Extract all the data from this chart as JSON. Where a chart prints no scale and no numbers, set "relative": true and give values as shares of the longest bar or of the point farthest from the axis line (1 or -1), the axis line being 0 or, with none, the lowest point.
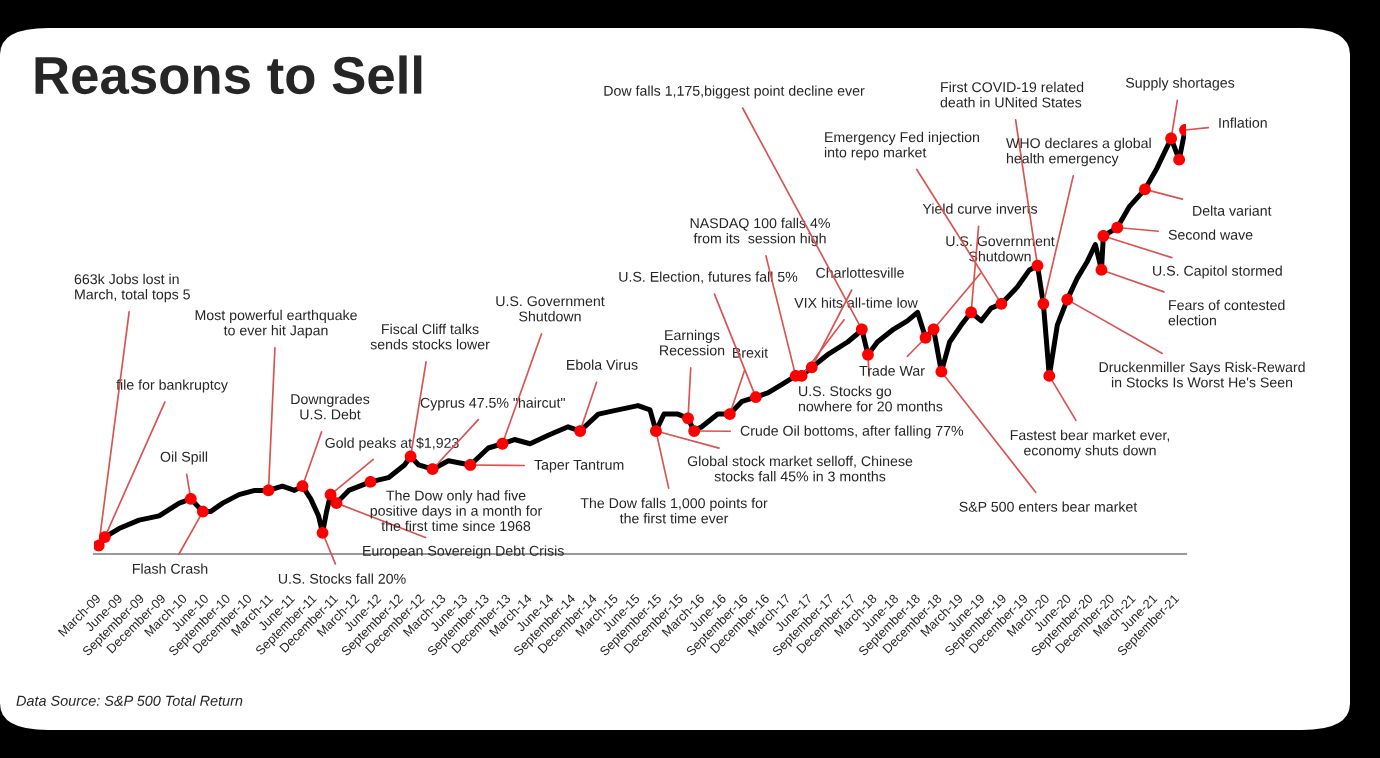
{
  "chart_data": {
    "type": "line",
    "title": "Reasons to Sell",
    "relative": true,
    "xlim": [
      "2009-02-25",
      "2021-10-25"
    ],
    "xticks": [
      {
        "value": "2009-03",
        "label": "March-09"
      },
      {
        "value": "2009-06",
        "label": "June-09"
      },
      {
        "value": "2009-09",
        "label": "September-09"
      },
      {
        "value": "2009-12",
        "label": "December-09"
      },
      {
        "value": "2010-03",
        "label": "March-10"
      },
      {
        "value": "2010-06",
        "label": "June-10"
      },
      {
        "value": "2010-09",
        "label": "September-10"
      },
      {
        "value": "2010-12",
        "label": "December-10"
      },
      {
        "value": "2011-03",
        "label": "March-11"
      },
      {
        "value": "2011-06",
        "label": "June-11"
      },
      {
        "value": "2011-09",
        "label": "September-11"
      },
      {
        "value": "2011-12",
        "label": "December-11"
      },
      {
        "value": "2012-03",
        "label": "March-12"
      },
      {
        "value": "2012-06",
        "label": "June-12"
      },
      {
        "value": "2012-09",
        "label": "September-12"
      },
      {
        "value": "2012-12",
        "label": "December-12"
      },
      {
        "value": "2013-03",
        "label": "March-13"
      },
      {
        "value": "2013-06",
        "label": "June-13"
      },
      {
        "value": "2013-09",
        "label": "September-13"
      },
      {
        "value": "2013-12",
        "label": "December-13"
      },
      {
        "value": "2014-03",
        "label": "March-14"
      },
      {
        "value": "2014-06",
        "label": "June-14"
      },
      {
        "value": "2014-09",
        "label": "September-14"
      },
      {
        "value": "2014-12",
        "label": "December-14"
      },
      {
        "value": "2015-03",
        "label": "March-15"
      },
      {
        "value": "2015-06",
        "label": "June-15"
      },
      {
        "value": "2015-09",
        "label": "September-15"
      },
      {
        "value": "2015-12",
        "label": "December-15"
      },
      {
        "value": "2016-03",
        "label": "March-16"
      },
      {
        "value": "2016-06",
        "label": "June-16"
      },
      {
        "value": "2016-09",
        "label": "September-16"
      },
      {
        "value": "2016-12",
        "label": "December-16"
      },
      {
        "value": "2017-03",
        "label": "March-17"
      },
      {
        "value": "2017-06",
        "label": "June-17"
      },
      {
        "value": "2017-09",
        "label": "September-17"
      },
      {
        "value": "2017-12",
        "label": "December-17"
      },
      {
        "value": "2018-03",
        "label": "March-18"
      },
      {
        "value": "2018-06",
        "label": "June-18"
      },
      {
        "value": "2018-09",
        "label": "September-18"
      },
      {
        "value": "2018-12",
        "label": "December-18"
      },
      {
        "value": "2019-03",
        "label": "March-19"
      },
      {
        "value": "2019-06",
        "label": "June-19"
      },
      {
        "value": "2019-09",
        "label": "September-19"
      },
      {
        "value": "2019-12",
        "label": "December-19"
      },
      {
        "value": "2020-03",
        "label": "March-20"
      },
      {
        "value": "2020-06",
        "label": "June-20"
      },
      {
        "value": "2020-09",
        "label": "September-20"
      },
      {
        "value": "2020-12",
        "label": "December-20"
      },
      {
        "value": "2021-03",
        "label": "March-21"
      },
      {
        "value": "2021-06",
        "label": "June-21"
      },
      {
        "value": "2021-09",
        "label": "September-21"
      }
    ],
    "series": [
      {
        "color": "#000000",
        "x": [
          "2009-03-17",
          "2009-04-12",
          "2009-06-11",
          "2009-09-04",
          "2009-11-28",
          "2010-02-21",
          "2010-04-11",
          "2010-06-01",
          "2010-07-04",
          "2010-08-24",
          "2010-11-01",
          "2011-01-07",
          "2011-03-06",
          "2011-05-04",
          "2011-06-24",
          "2011-07-28",
          "2011-09-01",
          "2011-10-04",
          "2011-10-21",
          "2011-11-07",
          "2011-11-24",
          "2011-12-19",
          "2012-02-09",
          "2012-05-11",
          "2012-07-26",
          "2012-10-02",
          "2012-10-28",
          "2012-12-01",
          "2013-01-29",
          "2013-04-06",
          "2013-07-08",
          "2013-09-22",
          "2013-11-21",
          "2014-01-11",
          "2014-03-18",
          "2014-06-03",
          "2014-08-26",
          "2014-10-16",
          "2015-01-01",
          "2015-03-25",
          "2015-06-18",
          "2015-08-08",
          "2015-09-02",
          "2015-10-06",
          "2015-12-04",
          "2016-01-16",
          "2016-02-11",
          "2016-03-14",
          "2016-05-21",
          "2016-07-11",
          "2016-09-01",
          "2016-10-29",
          "2016-12-19",
          "2017-02-17",
          "2017-04-16",
          "2017-05-11",
          "2017-06-23",
          "2017-08-29",
          "2017-11-22",
          "2018-01-04",
          "2018-01-21",
          "2018-02-16",
          "2018-03-28",
          "2018-06-04",
          "2018-08-02",
          "2018-09-14",
          "2018-10-18",
          "2018-11-21",
          "2018-12-24",
          "2019-01-28",
          "2019-03-18",
          "2019-04-29",
          "2019-06-11",
          "2019-07-23",
          "2019-09-04",
          "2019-11-11",
          "2020-01-01",
          "2020-02-04",
          "2020-02-29",
          "2020-03-25",
          "2020-04-28",
          "2020-06-09",
          "2020-07-21",
          "2020-09-02",
          "2020-10-06",
          "2020-11-01",
          "2020-11-09",
          "2021-01-07",
          "2021-02-28",
          "2021-05-04",
          "2021-06-24",
          "2021-08-23",
          "2021-09-26",
          "2021-10-21"
        ],
        "values": [
          0.02,
          0.04,
          0.06,
          0.08,
          0.09,
          0.12,
          0.13,
          0.1,
          0.1,
          0.12,
          0.14,
          0.15,
          0.15,
          0.16,
          0.15,
          0.16,
          0.13,
          0.09,
          0.05,
          0.1,
          0.14,
          0.12,
          0.15,
          0.17,
          0.18,
          0.21,
          0.23,
          0.21,
          0.2,
          0.22,
          0.21,
          0.25,
          0.26,
          0.27,
          0.26,
          0.28,
          0.3,
          0.29,
          0.33,
          0.34,
          0.35,
          0.34,
          0.29,
          0.33,
          0.33,
          0.32,
          0.29,
          0.3,
          0.33,
          0.33,
          0.36,
          0.37,
          0.38,
          0.4,
          0.42,
          0.42,
          0.44,
          0.47,
          0.5,
          0.52,
          0.53,
          0.47,
          0.5,
          0.53,
          0.55,
          0.57,
          0.51,
          0.53,
          0.43,
          0.5,
          0.54,
          0.57,
          0.55,
          0.58,
          0.59,
          0.63,
          0.67,
          0.68,
          0.59,
          0.42,
          0.54,
          0.6,
          0.65,
          0.69,
          0.73,
          0.67,
          0.75,
          0.77,
          0.82,
          0.86,
          0.91,
          0.98,
          0.93,
          1.0
        ]
      },
      {
        "type": "scatter",
        "color": "#ff0000",
        "marker": "circle",
        "x": [
          "2009-03-17",
          "2009-04-12",
          "2010-04-11",
          "2010-06-01",
          "2011-03-06",
          "2011-07-28",
          "2011-10-21",
          "2011-11-24",
          "2011-12-19",
          "2012-05-11",
          "2012-10-28",
          "2013-01-29",
          "2013-07-08",
          "2013-11-21",
          "2014-10-16",
          "2015-09-02",
          "2016-01-16",
          "2016-02-11",
          "2016-07-11",
          "2016-10-29",
          "2017-04-16",
          "2017-05-11",
          "2017-06-23",
          "2018-01-21",
          "2018-02-16",
          "2018-10-18",
          "2018-11-21",
          "2018-12-24",
          "2019-04-29",
          "2019-09-04",
          "2020-02-04",
          "2020-02-29",
          "2020-03-25",
          "2020-06-09",
          "2020-11-01",
          "2020-11-09",
          "2021-01-07",
          "2021-05-04",
          "2021-08-23",
          "2021-09-26",
          "2021-10-21"
        ],
        "values": [
          0.02,
          0.04,
          0.13,
          0.1,
          0.15,
          0.16,
          0.05,
          0.14,
          0.12,
          0.17,
          0.23,
          0.2,
          0.21,
          0.26,
          0.29,
          0.29,
          0.32,
          0.29,
          0.33,
          0.37,
          0.42,
          0.42,
          0.44,
          0.53,
          0.47,
          0.51,
          0.53,
          0.43,
          0.57,
          0.59,
          0.68,
          0.59,
          0.42,
          0.6,
          0.67,
          0.75,
          0.77,
          0.86,
          0.98,
          0.93,
          1.0
        ]
      }
    ],
    "annotations": [
      {
        "text": "663k Jobs lost in\nMarch, total tops 5",
        "x": "2009-03-17",
        "y": 0.02
      },
      {
        "text": "file for bankruptcy",
        "x": "2009-04-12",
        "y": 0.04
      },
      {
        "text": "Oil Spill",
        "x": "2010-04-11",
        "y": 0.13
      },
      {
        "text": "Flash Crash",
        "x": "2010-06-01",
        "y": 0.1
      },
      {
        "text": "Most powerful earthquake\nto ever hit Japan",
        "x": "2011-03-06",
        "y": 0.15
      },
      {
        "text": "Downgrades\nU.S. Debt",
        "x": "2011-07-28",
        "y": 0.16
      },
      {
        "text": "U.S. Stocks fall 20%",
        "x": "2011-10-21",
        "y": 0.05
      },
      {
        "text": "Gold peaks at $1,923",
        "x": "2011-11-24",
        "y": 0.14
      },
      {
        "text": "European Sovereign Debt Crisis",
        "x": "2011-12-19",
        "y": 0.12
      },
      {
        "text": "The Dow only had five\npositive days in a month for\nthe first time since 1968",
        "x": "2012-05-11",
        "y": 0.17
      },
      {
        "text": "Fiscal Cliff talks\nsends stocks lower",
        "x": "2012-10-28",
        "y": 0.23
      },
      {
        "text": "Cyprus 47.5% \"haircut\"",
        "x": "2013-01-29",
        "y": 0.2
      },
      {
        "text": "Taper Tantrum",
        "x": "2013-07-08",
        "y": 0.21
      },
      {
        "text": "U.S. Government\nShutdown",
        "x": "2013-11-21",
        "y": 0.26
      },
      {
        "text": "Ebola Virus",
        "x": "2014-10-16",
        "y": 0.29
      },
      {
        "text": "The Dow falls 1,000 points for\nthe first time ever",
        "x": "2015-09-02",
        "y": 0.29
      },
      {
        "text": "Earnings\nRecession",
        "x": "2016-01-16",
        "y": 0.32
      },
      {
        "text": "Global stock market selloff, Chinese\nstocks fall 45% in 3 months",
        "x": "2015-09-02",
        "y": 0.29
      },
      {
        "text": "Brexit",
        "x": "2016-07-11",
        "y": 0.33
      },
      {
        "text": "Crude Oil bottoms, after falling 77%",
        "x": "2016-02-11",
        "y": 0.29
      },
      {
        "text": "U.S. Election, futures fall 5%",
        "x": "2016-10-29",
        "y": 0.37
      },
      {
        "text": "NASDAQ 100 falls 4%\nfrom its  session high",
        "x": "2017-04-16",
        "y": 0.42
      },
      {
        "text": "Charlottesville",
        "x": "2017-06-23",
        "y": 0.44
      },
      {
        "text": "VIX hits all-time low",
        "x": "2017-05-11",
        "y": 0.42
      },
      {
        "text": "U.S. Stocks go\nnowhere for 20 months",
        "x": "2018-02-16",
        "y": 0.47
      },
      {
        "text": "Dow falls 1,175,biggest point decline ever",
        "x": "2018-01-21",
        "y": 0.53
      },
      {
        "text": "Trade War",
        "x": "2018-10-18",
        "y": 0.51
      },
      {
        "text": "S&P 500 enters bear market",
        "x": "2018-12-24",
        "y": 0.43
      },
      {
        "text": "U.S. Government\nShutdown",
        "x": "2018-11-21",
        "y": 0.53
      },
      {
        "text": "Yield curve inverts",
        "x": "2019-04-29",
        "y": 0.57
      },
      {
        "text": "Emergency Fed injection\ninto repo market",
        "x": "2019-09-04",
        "y": 0.59
      },
      {
        "text": "First COVID-19 related\ndeath in UNited States",
        "x": "2020-02-04",
        "y": 0.68
      },
      {
        "text": "WHO declares a global\nhealth emergency",
        "x": "2020-02-29",
        "y": 0.59
      },
      {
        "text": "Fastest bear market ever,\neconomy shuts down",
        "x": "2020-03-25",
        "y": 0.42
      },
      {
        "text": "Druckenmiller Says Risk-Reward\nin Stocks Is Worst He's Seen",
        "x": "2020-06-09",
        "y": 0.6
      },
      {
        "text": "Fears of contested\nelection",
        "x": "2020-11-01",
        "y": 0.67
      },
      {
        "text": "U.S. Capitol stormed",
        "x": "2020-11-09",
        "y": 0.75
      },
      {
        "text": "Second wave",
        "x": "2021-01-07",
        "y": 0.77
      },
      {
        "text": "Delta variant",
        "x": "2021-05-04",
        "y": 0.86
      },
      {
        "text": "Supply shortages",
        "x": "2021-08-23",
        "y": 0.98
      },
      {
        "text": "Inflation",
        "x": "2021-10-21",
        "y": 1.0
      },
      "Data Source: S&P 500 Total Return"
    ]
  }
}
